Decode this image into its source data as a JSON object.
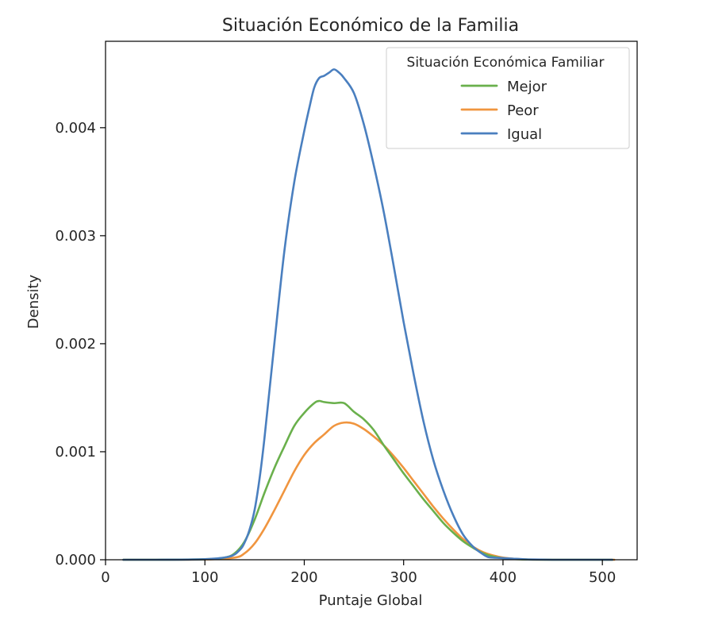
{
  "chart_data": {
    "type": "line",
    "title": "Situación Económico de la Familia",
    "xlabel": "Puntaje Global",
    "ylabel": "Density",
    "xlim": [
      0,
      535
    ],
    "ylim": [
      0,
      0.0048
    ],
    "x_ticks": [
      0,
      100,
      200,
      300,
      400,
      500
    ],
    "x_tick_labels": [
      "0",
      "100",
      "200",
      "300",
      "400",
      "500"
    ],
    "y_ticks": [
      0,
      0.001,
      0.002,
      0.003,
      0.004
    ],
    "y_tick_labels": [
      "0.000",
      "0.001",
      "0.002",
      "0.003",
      "0.004"
    ],
    "grid": false,
    "legend": {
      "title": "Situación Económica Familiar",
      "placement": "top-right"
    },
    "series": [
      {
        "name": "Mejor",
        "color": "#6ab04c",
        "x": [
          18,
          50,
          100,
          120,
          130,
          140,
          150,
          160,
          170,
          180,
          190,
          200,
          210,
          215,
          220,
          230,
          240,
          250,
          260,
          270,
          280,
          290,
          300,
          310,
          320,
          330,
          340,
          350,
          360,
          370,
          380,
          390,
          400,
          410,
          420,
          430,
          450,
          480,
          510
        ],
        "y": [
          0,
          0,
          5e-06,
          2e-05,
          6e-05,
          0.00017,
          0.00037,
          0.00062,
          0.00085,
          0.00105,
          0.00124,
          0.00136,
          0.00145,
          0.00147,
          0.00146,
          0.00145,
          0.00145,
          0.00137,
          0.0013,
          0.0012,
          0.00106,
          0.00093,
          0.0008,
          0.00068,
          0.00056,
          0.00045,
          0.00034,
          0.00025,
          0.00017,
          0.00011,
          6e-05,
          3e-05,
          1.5e-05,
          7e-06,
          3e-06,
          1e-06,
          0,
          0,
          0
        ]
      },
      {
        "name": "Peor",
        "color": "#f0953f",
        "x": [
          18,
          50,
          100,
          130,
          140,
          150,
          160,
          170,
          180,
          190,
          200,
          210,
          220,
          230,
          240,
          250,
          260,
          270,
          280,
          290,
          300,
          310,
          320,
          330,
          340,
          350,
          360,
          370,
          380,
          390,
          400,
          410,
          420,
          430,
          450,
          480,
          512
        ],
        "y": [
          0,
          0,
          3e-06,
          2e-05,
          6e-05,
          0.00015,
          0.00029,
          0.00046,
          0.00064,
          0.00082,
          0.00097,
          0.00108,
          0.00116,
          0.00124,
          0.00127,
          0.00126,
          0.00121,
          0.00114,
          0.00106,
          0.00096,
          0.00085,
          0.00073,
          0.00061,
          0.00049,
          0.00038,
          0.00028,
          0.00019,
          0.00012,
          7e-05,
          4e-05,
          2e-05,
          1e-05,
          4e-06,
          1e-06,
          0,
          0,
          0
        ]
      },
      {
        "name": "Igual",
        "color": "#4a7fbf",
        "x": [
          18,
          50,
          100,
          125,
          135,
          140,
          145,
          150,
          155,
          160,
          170,
          180,
          190,
          200,
          205,
          210,
          215,
          220,
          225,
          230,
          235,
          240,
          250,
          260,
          270,
          280,
          290,
          300,
          310,
          320,
          330,
          340,
          350,
          360,
          370,
          380,
          385,
          390,
          400,
          410,
          420,
          430,
          450,
          480,
          510
        ],
        "y": [
          0,
          0,
          5e-06,
          3e-05,
          9e-05,
          0.00016,
          0.00028,
          0.00046,
          0.00075,
          0.00113,
          0.00201,
          0.00286,
          0.0035,
          0.00397,
          0.00418,
          0.00437,
          0.00446,
          0.00448,
          0.00451,
          0.00454,
          0.00451,
          0.00446,
          0.00432,
          0.00403,
          0.00365,
          0.00322,
          0.00272,
          0.0022,
          0.00172,
          0.00128,
          0.00092,
          0.00064,
          0.00041,
          0.00023,
          0.00012,
          5e-05,
          2.5e-05,
          2e-05,
          1.5e-05,
          1e-05,
          5e-06,
          2e-06,
          0,
          0,
          0
        ]
      }
    ]
  }
}
